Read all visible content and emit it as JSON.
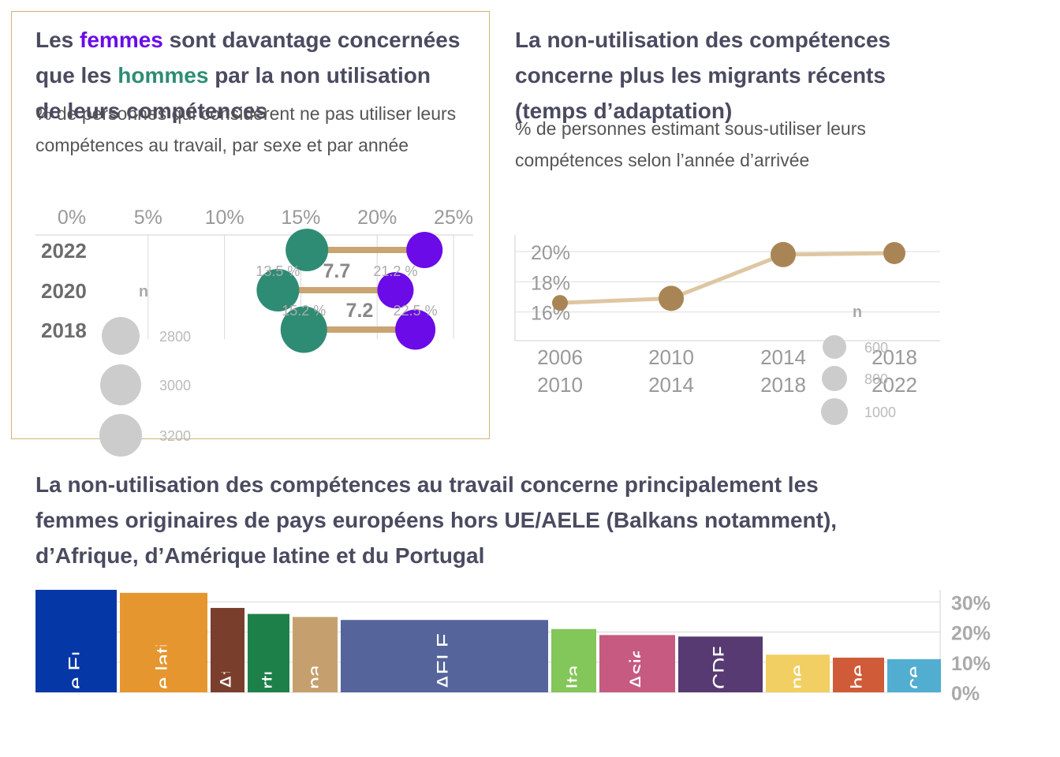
{
  "chart1": {
    "title": {
      "part1": "Les ",
      "femmes": "femmes",
      "part2": " sont davantage concernées que les ",
      "hommes": "hommes",
      "part3": " par la non utilisation de leurs compétences"
    },
    "subtitle": "% de personnes qui considèrent ne pas utiliser leurs compétences au travail, par sexe et par année",
    "size_legend_title": "n",
    "size_legend": [
      "2800",
      "3000",
      "3200"
    ],
    "colors": {
      "femmes": "#6a0be8",
      "hommes": "#2f8c74",
      "connector": "#c9a572",
      "size": "#cccccc"
    }
  },
  "chart2": {
    "title": "La non-utilisation des compétences concerne plus les migrants récents (temps d’adaptation)",
    "subtitle": "% de personnes estimant sous-utiliser leurs compétences selon l’année d’arrivée",
    "size_legend_title": "n",
    "size_legend": [
      "600",
      "800",
      "1000"
    ],
    "colors": {
      "line": "#dfc6a2",
      "marker": "#a98556"
    }
  },
  "chart3": {
    "title": "La non-utilisation des compétences au travail concerne principalement les femmes originaires de pays européens hors UE/AELE (Balkans notamment), d’Afrique, d’Amérique latine et du Portugal"
  },
  "chart_data": [
    {
      "type": "dumbbell",
      "categories": [
        "2022",
        "2020",
        "2018"
      ],
      "x_ticks": [
        "0%",
        "5%",
        "10%",
        "15%",
        "20%",
        "25%"
      ],
      "xlim": [
        0,
        25
      ],
      "series": [
        {
          "name": "hommes",
          "values": [
            15.4,
            13.5,
            15.2
          ]
        },
        {
          "name": "femmes",
          "values": [
            23.1,
            21.2,
            22.5
          ]
        }
      ],
      "differences": [
        "",
        "7.7",
        "7.2"
      ],
      "value_labels": {
        "hommes": [
          "",
          "13.5 %",
          "15.2 %"
        ],
        "femmes": [
          "",
          "21.2 %",
          "22.5 %"
        ]
      },
      "sizes_n": [
        3000,
        3000,
        3100
      ]
    },
    {
      "type": "line",
      "x": [
        "2006\n2010",
        "2010\n2014",
        "2014\n2018",
        "2018\n2022"
      ],
      "x_labels_top": [
        "2006",
        "2010",
        "2014",
        "2018"
      ],
      "x_labels_bottom": [
        "2010",
        "2014",
        "2018",
        "2022"
      ],
      "values": [
        16.6,
        16.9,
        19.8,
        19.9
      ],
      "y_ticks": [
        "16%",
        "18%",
        "20%"
      ],
      "ylim": [
        14.1,
        21.1
      ],
      "sizes_n": [
        600,
        900,
        900,
        800
      ]
    },
    {
      "type": "bar",
      "layout": "variable-width",
      "categories": [
        "Autre Europe",
        "Amérique latine",
        "Afrique",
        "Portugal",
        "Espagne",
        "AELE",
        "Italie",
        "Asie",
        "OCDE",
        "",
        "",
        ""
      ],
      "visible_labels": [
        "e Europe",
        "e latine",
        "Afrique",
        "rtugal",
        "pagne",
        "AELE",
        "Italie",
        "Asie",
        "CDE",
        "ne",
        "he",
        "ce"
      ],
      "values": [
        34,
        33,
        28,
        26,
        25,
        24,
        21,
        19,
        18.5,
        12.5,
        11.5,
        11
      ],
      "widths": [
        103,
        111,
        43,
        53,
        57,
        263,
        57,
        96,
        107,
        81,
        65,
        68
      ],
      "colors": [
        "#0537a6",
        "#e5962e",
        "#7a3f2c",
        "#1e8049",
        "#c5a06e",
        "#55649a",
        "#83c65a",
        "#c65a80",
        "#573a72",
        "#f2cf62",
        "#cf5b39",
        "#52aed0"
      ],
      "y_ticks": [
        "0%",
        "10%",
        "20%",
        "30%"
      ],
      "ylim": [
        0,
        34
      ]
    }
  ]
}
